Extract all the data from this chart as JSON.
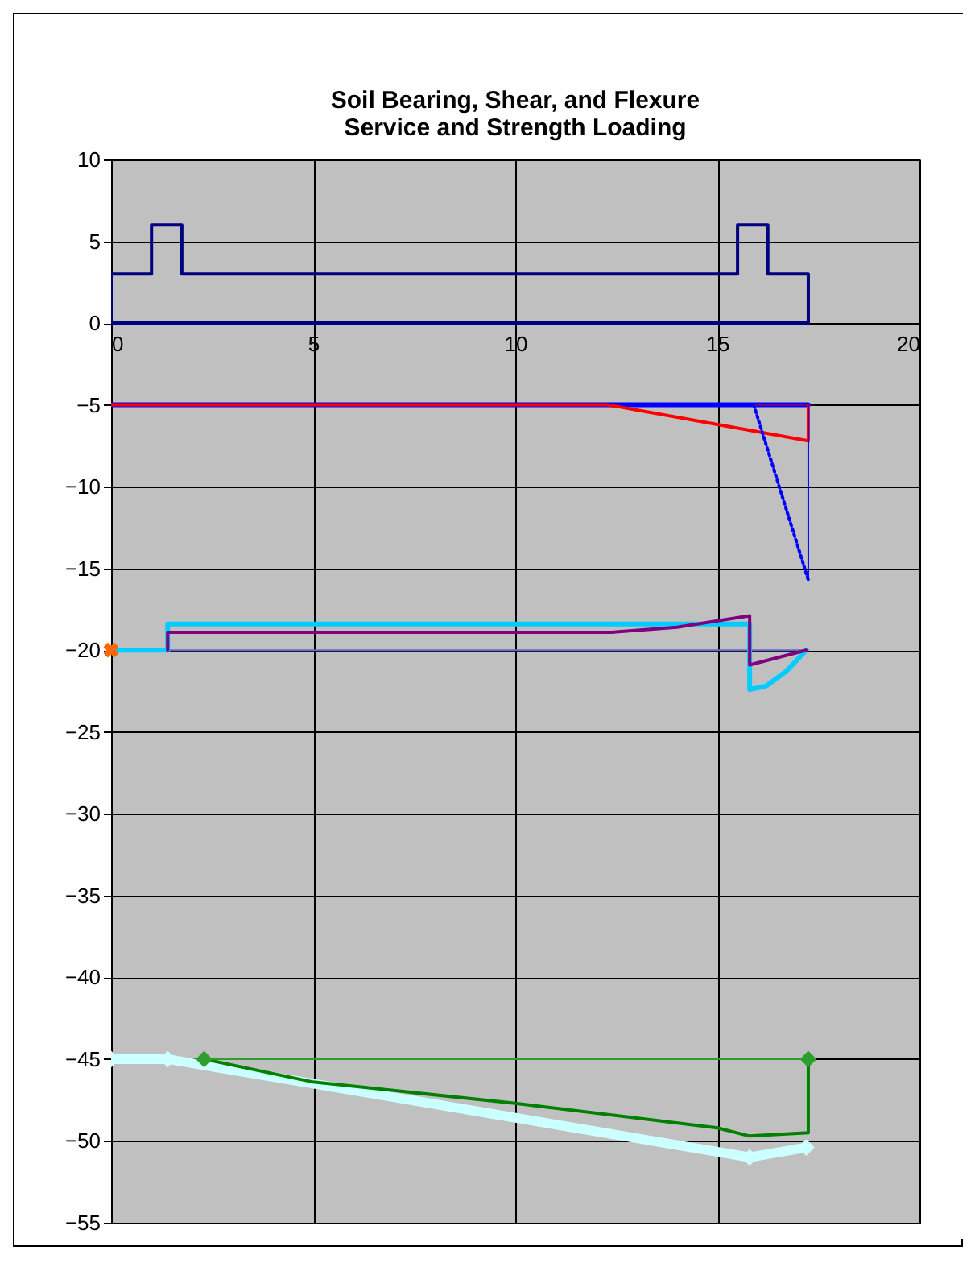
{
  "chart_data": {
    "type": "line",
    "title": "Soil Bearing, Shear, and Flexure",
    "subtitle": "Service and Strength Loading",
    "xlim": [
      0,
      20
    ],
    "xticks": [
      0,
      5,
      10,
      15,
      20
    ],
    "ylim": [
      -55,
      10
    ],
    "yticks": [
      -55,
      -50,
      -45,
      -40,
      -35,
      -30,
      -25,
      -20,
      -15,
      -10,
      -5,
      0,
      5,
      10
    ],
    "grid": true,
    "series": [
      {
        "color": "#000080",
        "x": [
          0,
          0,
          1,
          1,
          1.75,
          1.75,
          15.5,
          15.5,
          16.25,
          16.25,
          17.25,
          17.25
        ],
        "values": [
          0,
          3,
          3,
          6,
          6,
          3,
          3,
          6,
          6,
          3,
          3,
          0
        ]
      },
      {
        "color": "#000080",
        "x": [
          0,
          17.25
        ],
        "values": [
          0,
          0
        ]
      },
      {
        "color": "#0000ff",
        "x": [
          0,
          17.25
        ],
        "values": [
          -5,
          -5
        ]
      },
      {
        "color": "#ff0000",
        "x": [
          0,
          12.3,
          17.25,
          17.25
        ],
        "values": [
          -5,
          -5,
          -7.2,
          -5
        ]
      },
      {
        "color": "#800080",
        "x": [
          15.9,
          17.25
        ],
        "values": [
          -5,
          -5
        ]
      },
      {
        "color": "#0000ff",
        "line_style": "dotted",
        "x": [
          15.9,
          17.25
        ],
        "values": [
          -5,
          -15.7
        ]
      },
      {
        "color": "#0000ff",
        "x": [
          17.25,
          17.25
        ],
        "values": [
          -5,
          -15.7
        ]
      },
      {
        "color": "#6666cc",
        "x": [
          0,
          17.25
        ],
        "values": [
          -20,
          -20
        ]
      },
      {
        "color": "#00ccff",
        "x": [
          0,
          1.4,
          1.4,
          15.8,
          15.8,
          16.2,
          16.7,
          17.2
        ],
        "values": [
          -20,
          -20,
          -18.4,
          -18.4,
          -22.4,
          -22.2,
          -21.3,
          -20
        ]
      },
      {
        "color": "#800080",
        "x": [
          1.4,
          1.4,
          12.4,
          14,
          15.8,
          15.8,
          17.2
        ],
        "values": [
          -20,
          -18.9,
          -18.9,
          -18.6,
          -17.9,
          -20.9,
          -20
        ]
      },
      {
        "type": "scatter",
        "marker": "cross",
        "color": "#ff6600",
        "x": [
          0
        ],
        "values": [
          -20
        ]
      },
      {
        "color": "#ccffff",
        "marker": "diamond",
        "x": [
          0,
          1.4,
          15.8,
          17.2
        ],
        "values": [
          -45,
          -45,
          -51,
          -50.4
        ]
      },
      {
        "color": "#008000",
        "x": [
          2.3,
          5,
          10,
          15,
          15.8,
          17.25,
          17.25
        ],
        "values": [
          -45,
          -46.4,
          -47.7,
          -49.2,
          -49.7,
          -49.5,
          -45
        ]
      },
      {
        "color": "#2e9e2e",
        "marker": "diamond",
        "x": [
          2.3,
          17.25
        ],
        "values": [
          -45,
          -45
        ]
      }
    ]
  }
}
